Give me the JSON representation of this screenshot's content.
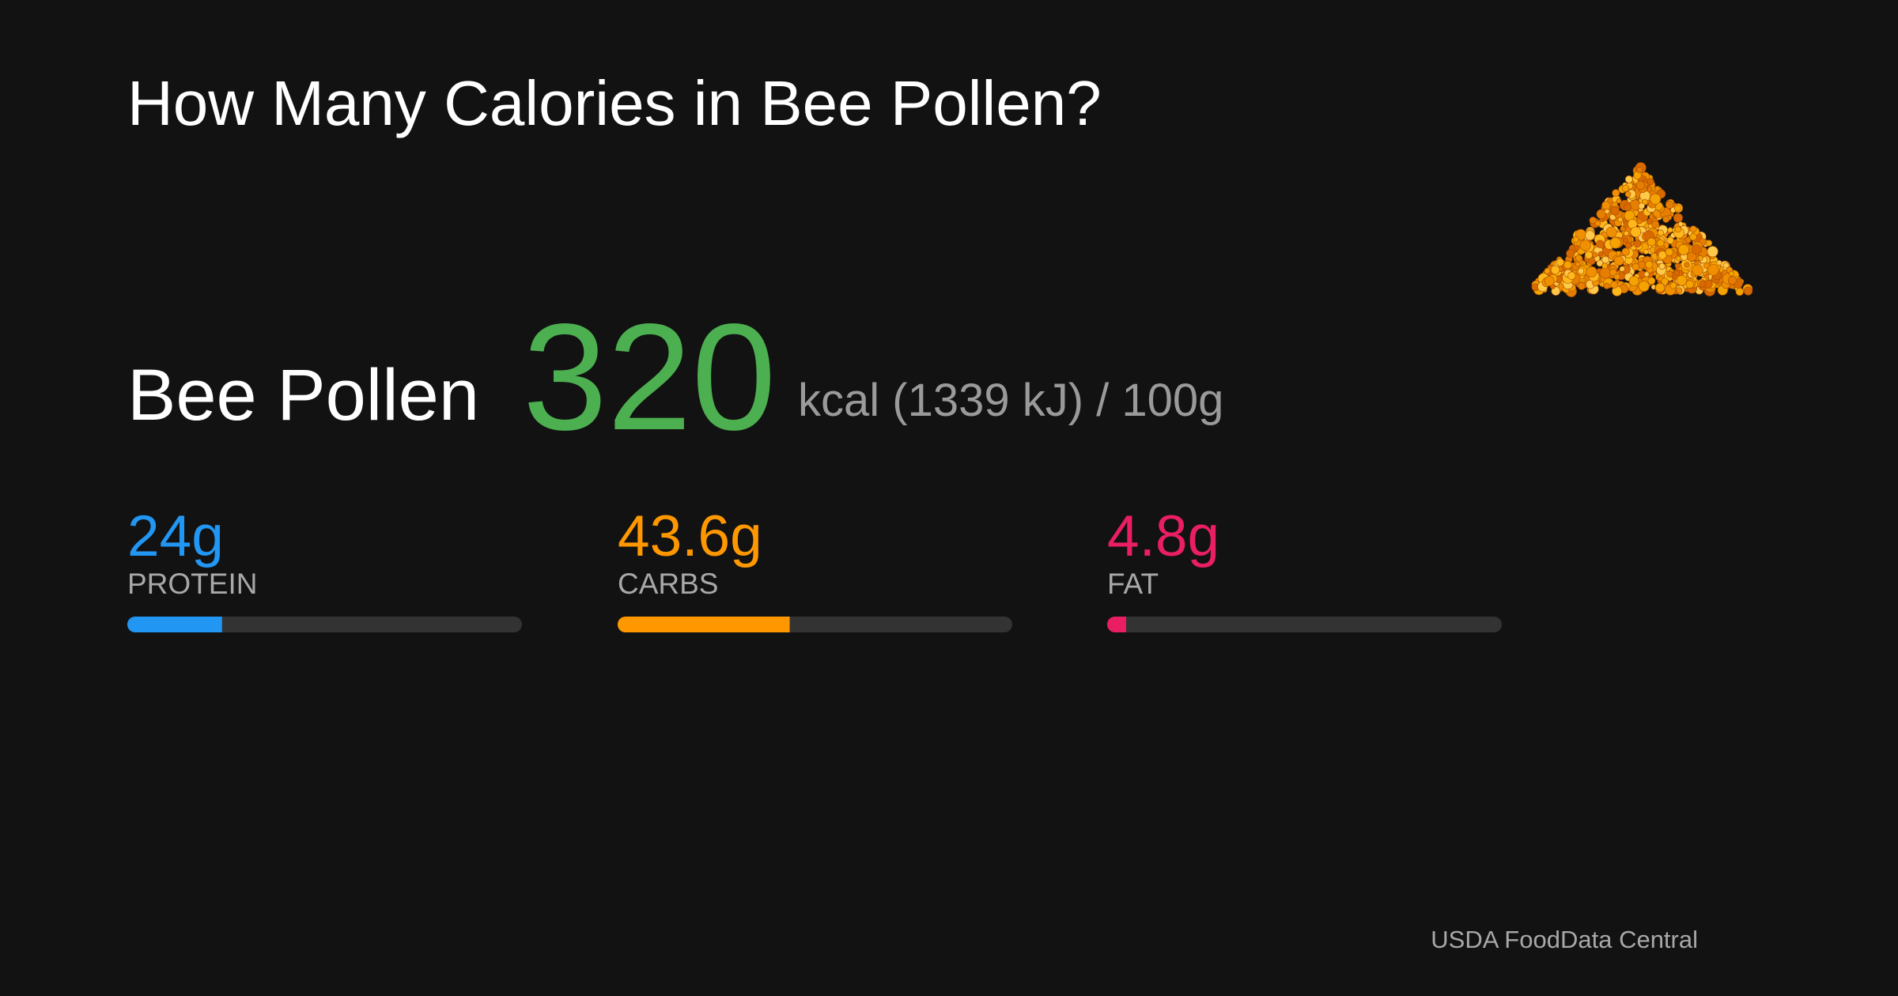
{
  "title": "How Many Calories in Bee Pollen?",
  "food": "Bee Pollen",
  "calories": 320,
  "calories_unit": "kcal (1339 kJ) / 100g",
  "xlim": [
    0,
    100
  ],
  "macros": [
    {
      "name": "PROTEIN",
      "value": 24,
      "label": "24g",
      "color": "#2196f3"
    },
    {
      "name": "CARBS",
      "value": 43.6,
      "label": "43.6g",
      "color": "#ff9800"
    },
    {
      "name": "FAT",
      "value": 4.8,
      "label": "4.8g",
      "color": "#e91e63"
    }
  ],
  "source": "USDA FoodData Central"
}
